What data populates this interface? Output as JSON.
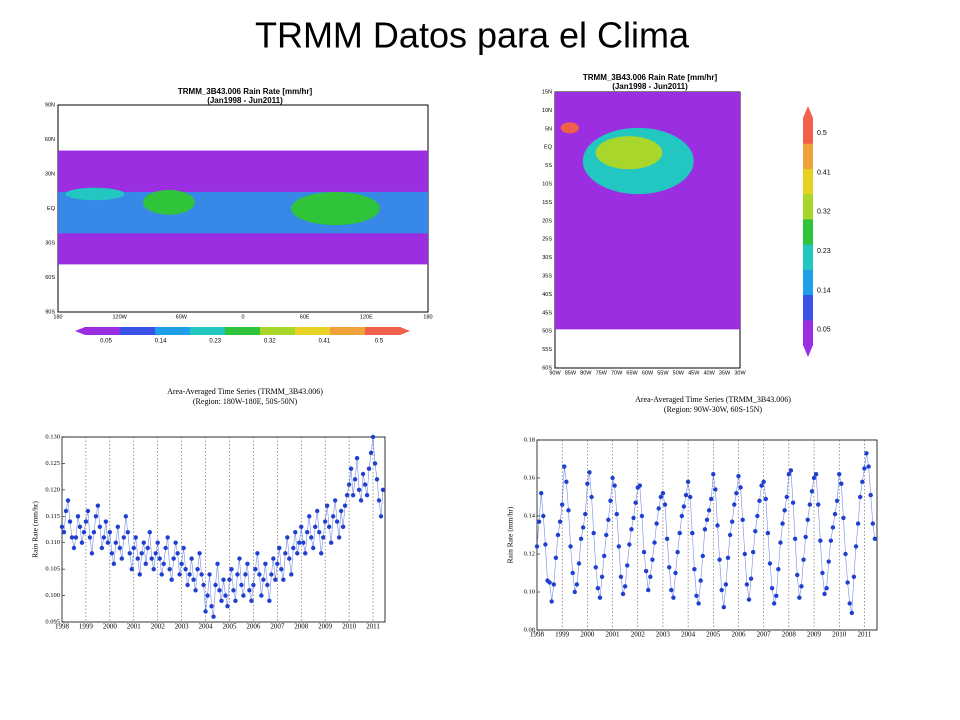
{
  "title": "TRMM Datos para el Clima",
  "chart_data": [
    {
      "type": "map",
      "title": [
        "TRMM_3B43.006 Rain Rate [mm/hr]",
        "(Jan1998 - Jun2011)"
      ],
      "yticks": [
        "90N",
        "60N",
        "30N",
        "EQ",
        "30S",
        "60S",
        "90S"
      ],
      "xticks": [
        "180",
        "120W",
        "60W",
        "0",
        "60E",
        "120E",
        "180"
      ],
      "colorbar": {
        "ticks": [
          0.05,
          0.14,
          0.23,
          0.32,
          0.41,
          0.5
        ],
        "colors": [
          "#9a2ee0",
          "#3a52e6",
          "#1e9fe8",
          "#21c7c0",
          "#2fc43a",
          "#a8d62a",
          "#e8d224",
          "#f0a23a",
          "#f0604a"
        ]
      }
    },
    {
      "type": "map",
      "title": [
        "TRMM_3B43.006 Rain Rate [mm/hr]",
        "(Jan1998 - Jun2011)"
      ],
      "yticks": [
        "15N",
        "10N",
        "5N",
        "EQ",
        "5S",
        "10S",
        "15S",
        "20S",
        "25S",
        "30S",
        "35S",
        "40S",
        "45S",
        "50S",
        "55S",
        "60S"
      ],
      "xticks": [
        "90W",
        "85W",
        "80W",
        "75W",
        "70W",
        "65W",
        "60W",
        "55W",
        "50W",
        "45W",
        "40W",
        "35W",
        "30W"
      ],
      "colorbar": {
        "ticks": [
          0.05,
          0.14,
          0.23,
          0.32,
          0.41,
          0.5
        ],
        "colors": [
          "#9a2ee0",
          "#3a52e6",
          "#1e9fe8",
          "#21c7c0",
          "#2fc43a",
          "#a8d62a",
          "#e8d224",
          "#f0a23a",
          "#f0604a"
        ]
      }
    },
    {
      "type": "line",
      "title": [
        "Area-Averaged Time Series (TRMM_3B43.006)",
        "(Region: 180W-180E, 50S-50N)"
      ],
      "ylabel": "Rain Rate  (mm/hr)",
      "xlim": [
        1998,
        2011.5
      ],
      "xticks": [
        1998,
        1999,
        2000,
        2001,
        2002,
        2003,
        2004,
        2005,
        2006,
        2007,
        2008,
        2009,
        2010,
        2011
      ],
      "ylim": [
        0.095,
        0.13
      ],
      "yticks": [
        0.095,
        {
          "value": 0.1,
          "label": "0.100"
        },
        0.105,
        {
          "value": 0.11,
          "label": "0.110"
        },
        0.115,
        {
          "value": 0.12,
          "label": "0.120"
        },
        0.125,
        {
          "value": 0.13,
          "label": "0.130"
        }
      ],
      "grid": true,
      "series": [
        {
          "color": "#1f3fd0",
          "x": [
            1998,
            1998.083,
            1998.167,
            1998.25,
            1998.333,
            1998.417,
            1998.5,
            1998.583,
            1998.667,
            1998.75,
            1998.833,
            1998.917,
            1999,
            1999.083,
            1999.167,
            1999.25,
            1999.333,
            1999.417,
            1999.5,
            1999.583,
            1999.667,
            1999.75,
            1999.833,
            1999.917,
            2000,
            2000.083,
            2000.167,
            2000.25,
            2000.333,
            2000.417,
            2000.5,
            2000.583,
            2000.667,
            2000.75,
            2000.833,
            2000.917,
            2001,
            2001.083,
            2001.167,
            2001.25,
            2001.333,
            2001.417,
            2001.5,
            2001.583,
            2001.667,
            2001.75,
            2001.833,
            2001.917,
            2002,
            2002.083,
            2002.167,
            2002.25,
            2002.333,
            2002.417,
            2002.5,
            2002.583,
            2002.667,
            2002.75,
            2002.833,
            2002.917,
            2003,
            2003.083,
            2003.167,
            2003.25,
            2003.333,
            2003.417,
            2003.5,
            2003.583,
            2003.667,
            2003.75,
            2003.833,
            2003.917,
            2004,
            2004.083,
            2004.167,
            2004.25,
            2004.333,
            2004.417,
            2004.5,
            2004.583,
            2004.667,
            2004.75,
            2004.833,
            2004.917,
            2005,
            2005.083,
            2005.167,
            2005.25,
            2005.333,
            2005.417,
            2005.5,
            2005.583,
            2005.667,
            2005.75,
            2005.833,
            2005.917,
            2006,
            2006.083,
            2006.167,
            2006.25,
            2006.333,
            2006.417,
            2006.5,
            2006.583,
            2006.667,
            2006.75,
            2006.833,
            2006.917,
            2007,
            2007.083,
            2007.167,
            2007.25,
            2007.333,
            2007.417,
            2007.5,
            2007.583,
            2007.667,
            2007.75,
            2007.833,
            2007.917,
            2008,
            2008.083,
            2008.167,
            2008.25,
            2008.333,
            2008.417,
            2008.5,
            2008.583,
            2008.667,
            2008.75,
            2008.833,
            2008.917,
            2009,
            2009.083,
            2009.167,
            2009.25,
            2009.333,
            2009.417,
            2009.5,
            2009.583,
            2009.667,
            2009.75,
            2009.833,
            2009.917,
            2010,
            2010.083,
            2010.167,
            2010.25,
            2010.333,
            2010.417,
            2010.5,
            2010.583,
            2010.667,
            2010.75,
            2010.833,
            2010.917,
            2011,
            2011.083,
            2011.167,
            2011.25,
            2011.333,
            2011.417
          ],
          "values": [
            0.113,
            0.112,
            0.116,
            0.118,
            0.114,
            0.111,
            0.109,
            0.111,
            0.115,
            0.113,
            0.11,
            0.112,
            0.114,
            0.116,
            0.111,
            0.108,
            0.112,
            0.115,
            0.117,
            0.113,
            0.109,
            0.111,
            0.114,
            0.11,
            0.112,
            0.108,
            0.106,
            0.11,
            0.113,
            0.109,
            0.107,
            0.111,
            0.115,
            0.112,
            0.108,
            0.105,
            0.109,
            0.111,
            0.107,
            0.104,
            0.108,
            0.11,
            0.106,
            0.109,
            0.112,
            0.107,
            0.105,
            0.108,
            0.11,
            0.107,
            0.104,
            0.106,
            0.109,
            0.111,
            0.105,
            0.103,
            0.107,
            0.11,
            0.108,
            0.104,
            0.106,
            0.109,
            0.105,
            0.102,
            0.104,
            0.107,
            0.103,
            0.101,
            0.105,
            0.108,
            0.104,
            0.102,
            0.097,
            0.1,
            0.104,
            0.098,
            0.096,
            0.102,
            0.106,
            0.101,
            0.099,
            0.103,
            0.1,
            0.098,
            0.103,
            0.105,
            0.101,
            0.099,
            0.104,
            0.107,
            0.102,
            0.1,
            0.104,
            0.106,
            0.101,
            0.099,
            0.102,
            0.105,
            0.108,
            0.104,
            0.1,
            0.103,
            0.106,
            0.102,
            0.099,
            0.104,
            0.107,
            0.103,
            0.106,
            0.109,
            0.105,
            0.103,
            0.108,
            0.111,
            0.107,
            0.104,
            0.109,
            0.112,
            0.108,
            0.11,
            0.113,
            0.11,
            0.108,
            0.112,
            0.115,
            0.111,
            0.109,
            0.113,
            0.116,
            0.112,
            0.108,
            0.111,
            0.114,
            0.117,
            0.113,
            0.11,
            0.115,
            0.118,
            0.114,
            0.111,
            0.116,
            0.113,
            0.117,
            0.119,
            0.121,
            0.124,
            0.119,
            0.122,
            0.126,
            0.12,
            0.118,
            0.123,
            0.121,
            0.119,
            0.124,
            0.127,
            0.13,
            0.125,
            0.122,
            0.118,
            0.115,
            0.12
          ]
        }
      ]
    },
    {
      "type": "line",
      "title": [
        "Area-Averaged Time Series (TRMM_3B43.006)",
        "(Region: 90W-30W, 60S-15N)"
      ],
      "ylabel": "Rain Rate (mm/hr)",
      "xlim": [
        1998,
        2011.5
      ],
      "xticks": [
        1998,
        1999,
        2000,
        2001,
        2002,
        2003,
        2004,
        2005,
        2006,
        2007,
        2008,
        2009,
        2010,
        2011
      ],
      "ylim": [
        0.08,
        0.18
      ],
      "yticks": [
        0.08,
        {
          "value": 0.1,
          "label": "0.10"
        },
        0.12,
        0.14,
        0.16,
        0.18
      ],
      "grid": true,
      "series": [
        {
          "color": "#1f3fd0",
          "x": [
            1998,
            1998.083,
            1998.167,
            1998.25,
            1998.333,
            1998.417,
            1998.5,
            1998.583,
            1998.667,
            1998.75,
            1998.833,
            1998.917,
            1999,
            1999.083,
            1999.167,
            1999.25,
            1999.333,
            1999.417,
            1999.5,
            1999.583,
            1999.667,
            1999.75,
            1999.833,
            1999.917,
            2000,
            2000.083,
            2000.167,
            2000.25,
            2000.333,
            2000.417,
            2000.5,
            2000.583,
            2000.667,
            2000.75,
            2000.833,
            2000.917,
            2001,
            2001.083,
            2001.167,
            2001.25,
            2001.333,
            2001.417,
            2001.5,
            2001.583,
            2001.667,
            2001.75,
            2001.833,
            2001.917,
            2002,
            2002.083,
            2002.167,
            2002.25,
            2002.333,
            2002.417,
            2002.5,
            2002.583,
            2002.667,
            2002.75,
            2002.833,
            2002.917,
            2003,
            2003.083,
            2003.167,
            2003.25,
            2003.333,
            2003.417,
            2003.5,
            2003.583,
            2003.667,
            2003.75,
            2003.833,
            2003.917,
            2004,
            2004.083,
            2004.167,
            2004.25,
            2004.333,
            2004.417,
            2004.5,
            2004.583,
            2004.667,
            2004.75,
            2004.833,
            2004.917,
            2005,
            2005.083,
            2005.167,
            2005.25,
            2005.333,
            2005.417,
            2005.5,
            2005.583,
            2005.667,
            2005.75,
            2005.833,
            2005.917,
            2006,
            2006.083,
            2006.167,
            2006.25,
            2006.333,
            2006.417,
            2006.5,
            2006.583,
            2006.667,
            2006.75,
            2006.833,
            2006.917,
            2007,
            2007.083,
            2007.167,
            2007.25,
            2007.333,
            2007.417,
            2007.5,
            2007.583,
            2007.667,
            2007.75,
            2007.833,
            2007.917,
            2008,
            2008.083,
            2008.167,
            2008.25,
            2008.333,
            2008.417,
            2008.5,
            2008.583,
            2008.667,
            2008.75,
            2008.833,
            2008.917,
            2009,
            2009.083,
            2009.167,
            2009.25,
            2009.333,
            2009.417,
            2009.5,
            2009.583,
            2009.667,
            2009.75,
            2009.833,
            2009.917,
            2010,
            2010.083,
            2010.167,
            2010.25,
            2010.333,
            2010.417,
            2010.5,
            2010.583,
            2010.667,
            2010.75,
            2010.833,
            2010.917,
            2011,
            2011.083,
            2011.167,
            2011.25,
            2011.333,
            2011.417
          ],
          "values": [
            0.124,
            0.137,
            0.152,
            0.14,
            0.125,
            0.106,
            0.105,
            0.095,
            0.104,
            0.118,
            0.13,
            0.137,
            0.146,
            0.166,
            0.158,
            0.143,
            0.124,
            0.11,
            0.1,
            0.104,
            0.115,
            0.128,
            0.134,
            0.141,
            0.157,
            0.163,
            0.15,
            0.131,
            0.113,
            0.102,
            0.097,
            0.108,
            0.119,
            0.13,
            0.138,
            0.148,
            0.16,
            0.156,
            0.141,
            0.124,
            0.108,
            0.099,
            0.103,
            0.114,
            0.125,
            0.133,
            0.139,
            0.147,
            0.155,
            0.156,
            0.14,
            0.121,
            0.111,
            0.101,
            0.108,
            0.117,
            0.126,
            0.136,
            0.144,
            0.15,
            0.152,
            0.146,
            0.128,
            0.113,
            0.101,
            0.097,
            0.11,
            0.121,
            0.131,
            0.14,
            0.145,
            0.151,
            0.158,
            0.15,
            0.131,
            0.112,
            0.098,
            0.094,
            0.106,
            0.119,
            0.133,
            0.138,
            0.143,
            0.149,
            0.162,
            0.154,
            0.135,
            0.117,
            0.101,
            0.092,
            0.104,
            0.118,
            0.13,
            0.137,
            0.146,
            0.152,
            0.161,
            0.155,
            0.138,
            0.12,
            0.104,
            0.096,
            0.107,
            0.121,
            0.132,
            0.14,
            0.148,
            0.156,
            0.158,
            0.149,
            0.131,
            0.115,
            0.102,
            0.094,
            0.098,
            0.112,
            0.126,
            0.136,
            0.143,
            0.15,
            0.162,
            0.164,
            0.147,
            0.128,
            0.109,
            0.097,
            0.103,
            0.117,
            0.129,
            0.138,
            0.146,
            0.153,
            0.16,
            0.162,
            0.146,
            0.127,
            0.11,
            0.099,
            0.102,
            0.116,
            0.127,
            0.134,
            0.141,
            0.148,
            0.162,
            0.157,
            0.139,
            0.12,
            0.105,
            0.094,
            0.089,
            0.108,
            0.124,
            0.136,
            0.15,
            0.158,
            0.165,
            0.173,
            0.166,
            0.151,
            0.136,
            0.128
          ]
        }
      ]
    }
  ]
}
